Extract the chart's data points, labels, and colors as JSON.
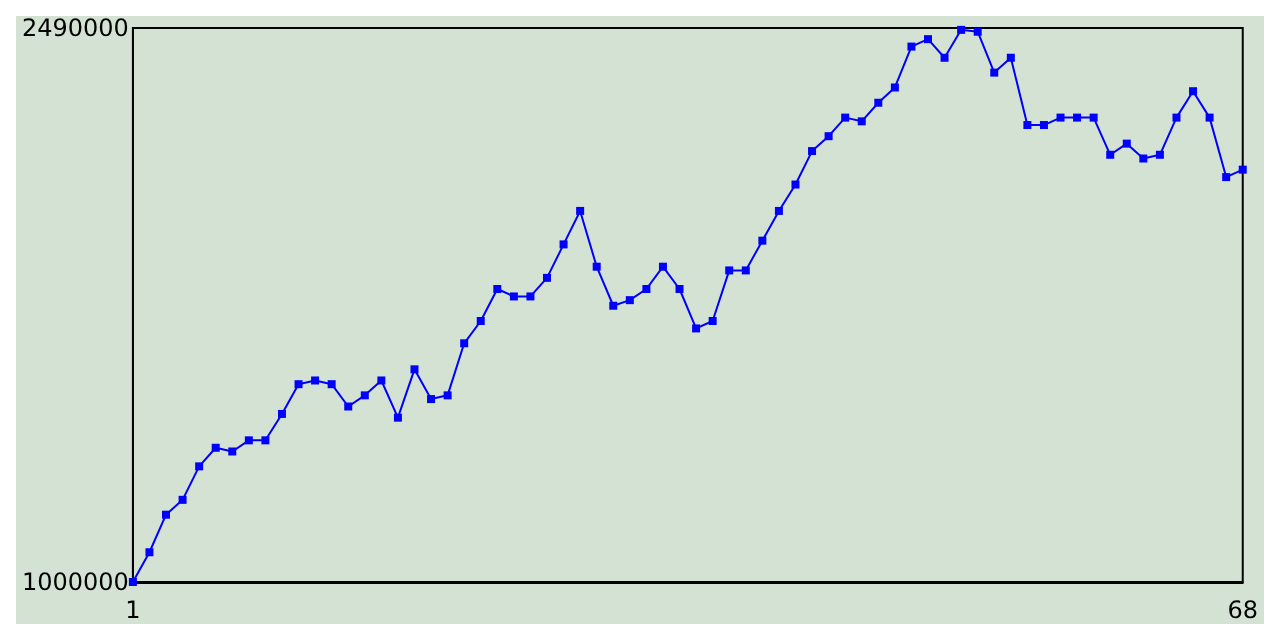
{
  "chart_data": {
    "type": "line",
    "x": [
      1,
      2,
      3,
      4,
      5,
      6,
      7,
      8,
      9,
      10,
      11,
      12,
      13,
      14,
      15,
      16,
      17,
      18,
      19,
      20,
      21,
      22,
      23,
      24,
      25,
      26,
      27,
      28,
      29,
      30,
      31,
      32,
      33,
      34,
      35,
      36,
      37,
      38,
      39,
      40,
      41,
      42,
      43,
      44,
      45,
      46,
      47,
      48,
      49,
      50,
      51,
      52,
      53,
      54,
      55,
      56,
      57,
      58,
      59,
      60,
      61,
      62,
      63,
      64,
      65,
      66,
      67,
      68
    ],
    "series": [
      {
        "color": "#0000ff",
        "values": [
          1000000,
          1080000,
          1181000,
          1221000,
          1311000,
          1361000,
          1351000,
          1381000,
          1381000,
          1452000,
          1532000,
          1542000,
          1532000,
          1472000,
          1502000,
          1542000,
          1442000,
          1572000,
          1492000,
          1502000,
          1642000,
          1702000,
          1788000,
          1768000,
          1768000,
          1818000,
          1908000,
          1998000,
          1848000,
          1743000,
          1758000,
          1788000,
          1848000,
          1788000,
          1682000,
          1702000,
          1838000,
          1838000,
          1918000,
          1998000,
          2069000,
          2159000,
          2199000,
          2249000,
          2239000,
          2289000,
          2330000,
          2440000,
          2460000,
          2410000,
          2485000,
          2480000,
          2370000,
          2410000,
          2229000,
          2229000,
          2249000,
          2249000,
          2249000,
          2149000,
          2179000,
          2139000,
          2149000,
          2249000,
          2320000,
          2249000,
          2089000,
          2109000
        ]
      }
    ],
    "xlim": [
      1,
      68
    ],
    "xticks": [
      1,
      68
    ],
    "ylim": [
      1000000,
      2490000
    ],
    "yticks": [
      1000000,
      2490000
    ],
    "grid": false,
    "marker": "square",
    "line_style": "solid"
  }
}
